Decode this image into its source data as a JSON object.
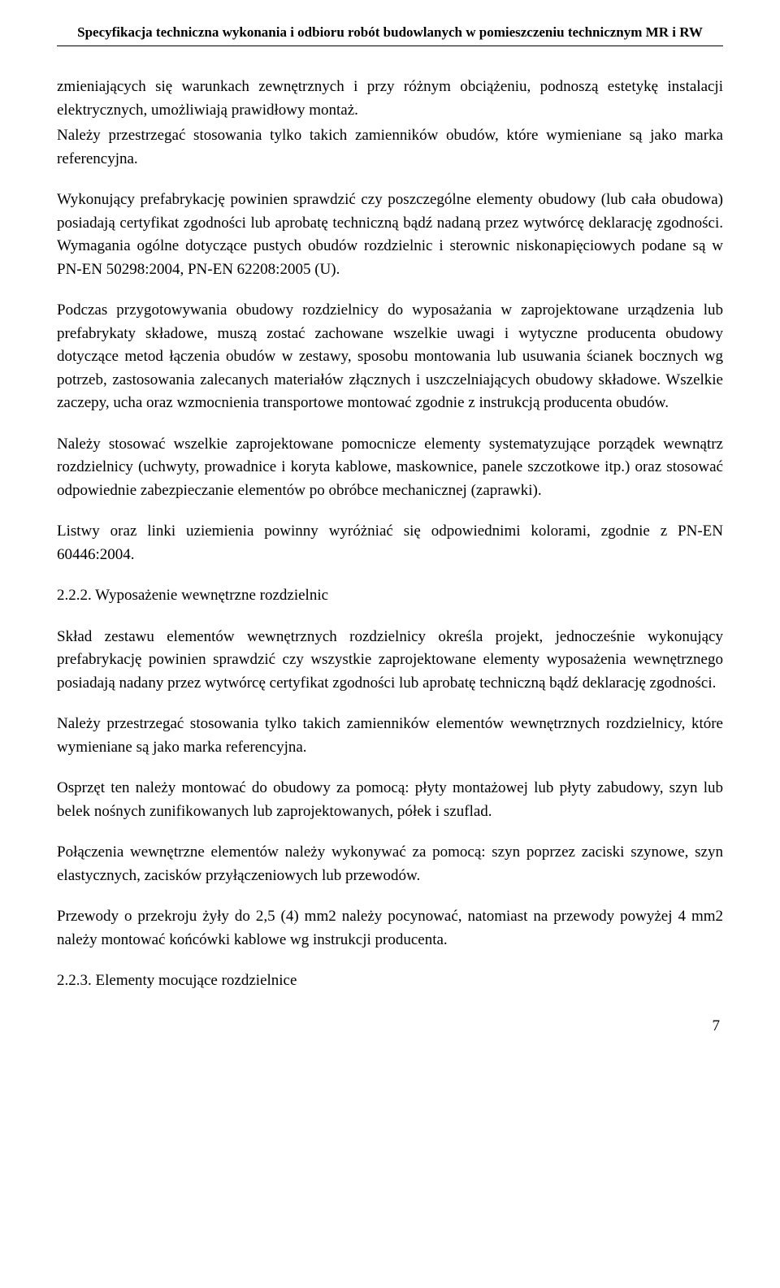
{
  "header": {
    "text": "Specyfikacja techniczna wykonania i odbioru robót budowlanych w pomieszczeniu technicznym MR i RW"
  },
  "paragraphs": {
    "p1a": "zmieniających się warunkach zewnętrznych i przy różnym obciążeniu, podnoszą estetykę instalacji elektrycznych, umożliwiają prawidłowy montaż.",
    "p1b": "Należy przestrzegać stosowania tylko takich zamienników obudów, które wymieniane są jako marka referencyjna.",
    "p2": "Wykonujący prefabrykację powinien sprawdzić czy poszczególne elementy obudowy (lub cała obudowa) posiadają certyfikat zgodności lub aprobatę techniczną bądź nadaną przez wytwórcę deklarację zgodności. Wymagania ogólne dotyczące pustych obudów rozdzielnic i sterownic niskonapięciowych podane są w PN-EN 50298:2004, PN-EN 62208:2005 (U).",
    "p3": "Podczas przygotowywania obudowy rozdzielnicy do wyposażania w zaprojektowane urządzenia lub prefabrykaty składowe, muszą zostać zachowane wszelkie uwagi i wytyczne producenta obudowy dotyczące metod łączenia obudów w zestawy, sposobu montowania lub usuwania ścianek bocznych wg potrzeb, zastosowania zalecanych materiałów złącznych i uszczelniających obudowy składowe. Wszelkie zaczepy, ucha oraz wzmocnienia transportowe montować zgodnie z instrukcją producenta obudów.",
    "p4": "Należy stosować wszelkie zaprojektowane pomocnicze elementy systematyzujące porządek wewnątrz rozdzielnicy (uchwyty, prowadnice i koryta kablowe, maskownice, panele szczotkowe itp.) oraz stosować odpowiednie zabezpieczanie elementów po obróbce mechanicznej (zaprawki).",
    "p5": "Listwy oraz linki uziemienia powinny wyróżniać się odpowiednimi kolorami, zgodnie z PN-EN 60446:2004.",
    "s222": "2.2.2. Wyposażenie wewnętrzne rozdzielnic",
    "p6": "Skład zestawu elementów wewnętrznych rozdzielnicy określa projekt, jednocześnie wykonujący prefabrykację powinien sprawdzić czy wszystkie zaprojektowane elementy wyposażenia wewnętrznego posiadają nadany przez wytwórcę certyfikat zgodności lub aprobatę techniczną bądź deklarację zgodności.",
    "p7": "Należy przestrzegać stosowania tylko takich zamienników elementów wewnętrznych rozdzielnicy, które wymieniane są jako marka referencyjna.",
    "p8": "Osprzęt ten należy montować do obudowy za pomocą: płyty montażowej lub płyty zabudowy, szyn lub belek nośnych zunifikowanych lub zaprojektowanych, półek i szuflad.",
    "p9": "Połączenia wewnętrzne elementów należy wykonywać za pomocą: szyn poprzez zaciski szynowe, szyn elastycznych, zacisków przyłączeniowych lub przewodów.",
    "p10": "Przewody o przekroju żyły do 2,5 (4) mm2 należy pocynować, natomiast na przewody powyżej 4 mm2 należy montować końcówki kablowe wg instrukcji producenta.",
    "s223": "2.2.3. Elementy mocujące rozdzielnice"
  },
  "pageNumber": "7",
  "style": {
    "bodyFont": "Times New Roman",
    "bodyFontSize": 19,
    "headerFontSize": 17,
    "textColor": "#000000",
    "backgroundColor": "#ffffff",
    "pageWidth": 960,
    "pageHeight": 1585
  }
}
